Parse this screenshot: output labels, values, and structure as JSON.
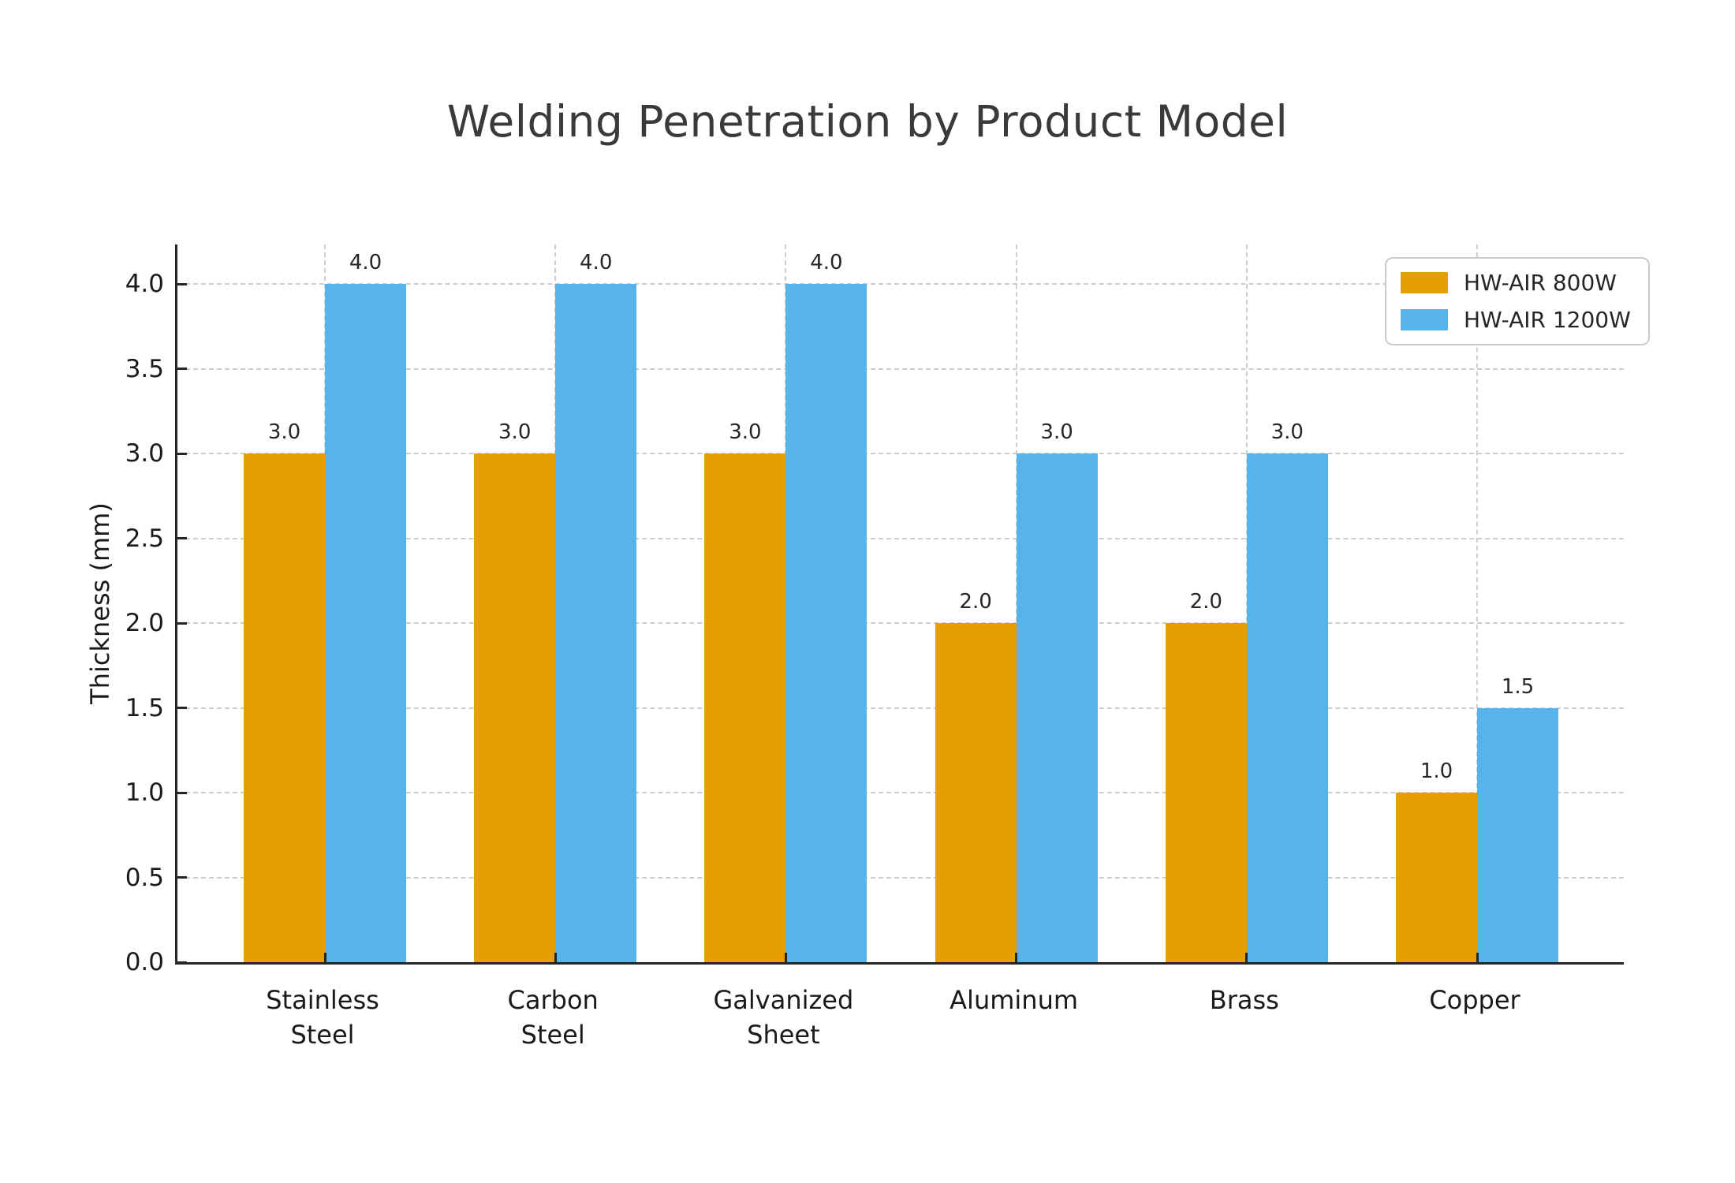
{
  "chart_data": {
    "type": "bar",
    "title": "Welding Penetration by Product Model",
    "ylabel": "Thickness (mm)",
    "xlabel": "",
    "categories": [
      [
        "Stainless",
        "Steel"
      ],
      [
        "Carbon",
        "Steel"
      ],
      [
        "Galvanized",
        "Sheet"
      ],
      [
        "Aluminum"
      ],
      [
        "Brass"
      ],
      [
        "Copper"
      ]
    ],
    "series": [
      {
        "name": "HW-AIR 800W",
        "color": "#E69F00",
        "values": [
          3.0,
          3.0,
          3.0,
          2.0,
          2.0,
          1.0
        ]
      },
      {
        "name": "HW-AIR 1200W",
        "color": "#56B4E9",
        "values": [
          4.0,
          4.0,
          4.0,
          3.0,
          3.0,
          1.5
        ]
      }
    ],
    "bar_label_decimals": 1,
    "yticks": [
      "0.0",
      "0.5",
      "1.0",
      "1.5",
      "2.0",
      "2.5",
      "3.0",
      "3.5",
      "4.0"
    ],
    "ylim": [
      0,
      4.23
    ],
    "grid": true,
    "grid_style": "dashed",
    "legend_position": "upper right",
    "colors": {
      "title_text": "#3a3a3a",
      "tick_text": "#1a1a1a",
      "axis_spine": "#262626",
      "gridline": "#cdcdcd",
      "background": "#ffffff"
    }
  }
}
